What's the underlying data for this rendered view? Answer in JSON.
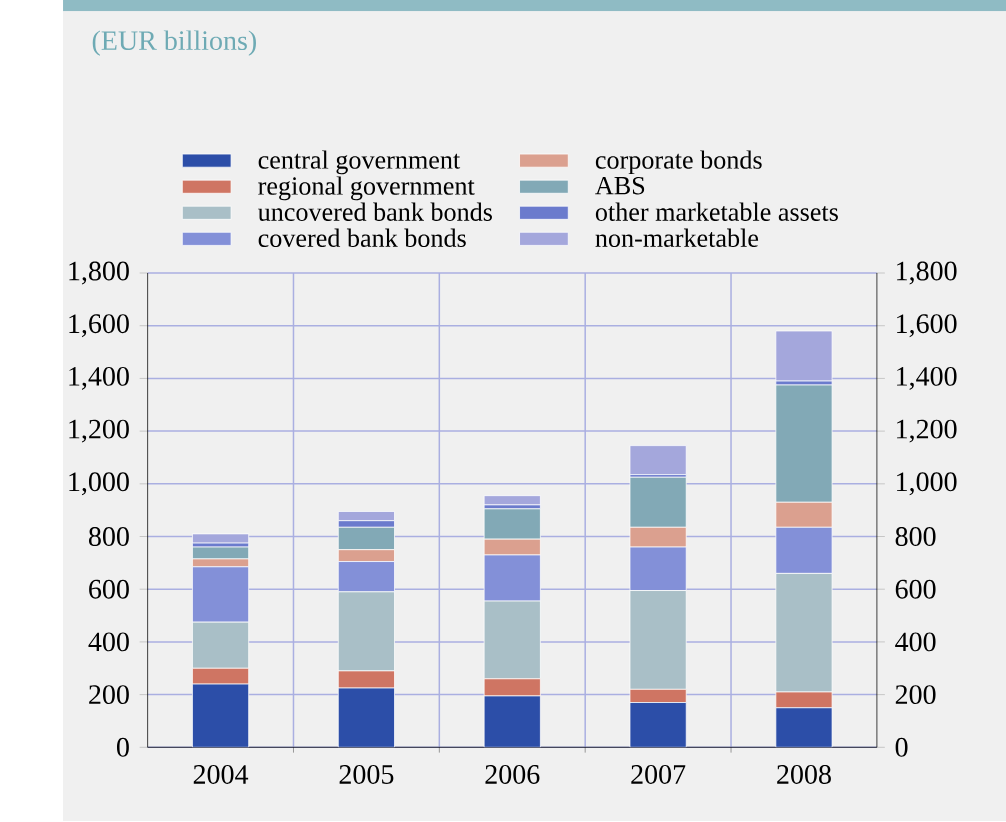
{
  "chart_data": {
    "type": "bar",
    "stacked": true,
    "title": "(EUR billions)",
    "categories": [
      "2004",
      "2005",
      "2006",
      "2007",
      "2008"
    ],
    "series": [
      {
        "name": "central government",
        "color": "#2c4ea8",
        "values": [
          240,
          225,
          195,
          170,
          150
        ]
      },
      {
        "name": "regional government",
        "color": "#cf7563",
        "values": [
          60,
          65,
          65,
          50,
          60
        ]
      },
      {
        "name": "uncovered bank bonds",
        "color": "#a9bfc7",
        "values": [
          175,
          300,
          295,
          375,
          450
        ]
      },
      {
        "name": "covered bank bonds",
        "color": "#8390d8",
        "values": [
          210,
          115,
          175,
          165,
          175
        ]
      },
      {
        "name": "corporate bonds",
        "color": "#dba08f",
        "values": [
          30,
          45,
          60,
          75,
          95
        ]
      },
      {
        "name": "ABS",
        "color": "#82a9b6",
        "values": [
          45,
          85,
          115,
          190,
          445
        ]
      },
      {
        "name": "other marketable assets",
        "color": "#6b7bcd",
        "values": [
          15,
          25,
          15,
          10,
          15
        ]
      },
      {
        "name": "non-marketable",
        "color": "#a4a7dc",
        "values": [
          35,
          35,
          35,
          110,
          190
        ]
      }
    ],
    "ylim": [
      0,
      1800
    ],
    "yticks": [
      0,
      200,
      400,
      600,
      800,
      {
        "value": 1000,
        "label": "1,000"
      },
      {
        "value": 1200,
        "label": "1,200"
      },
      {
        "value": 1400,
        "label": "1,400"
      },
      {
        "value": 1600,
        "label": "1,600"
      },
      {
        "value": 1800,
        "label": "1,800"
      }
    ],
    "y2lim": [
      0,
      1800
    ],
    "y2ticks": [
      0,
      200,
      400,
      600,
      800,
      {
        "value": 1000,
        "label": "1,000"
      },
      {
        "value": 1200,
        "label": "1,200"
      },
      {
        "value": 1400,
        "label": "1,400"
      },
      {
        "value": 1600,
        "label": "1,600"
      },
      {
        "value": 1800,
        "label": "1,800"
      }
    ],
    "grid": true,
    "legend": "top"
  }
}
